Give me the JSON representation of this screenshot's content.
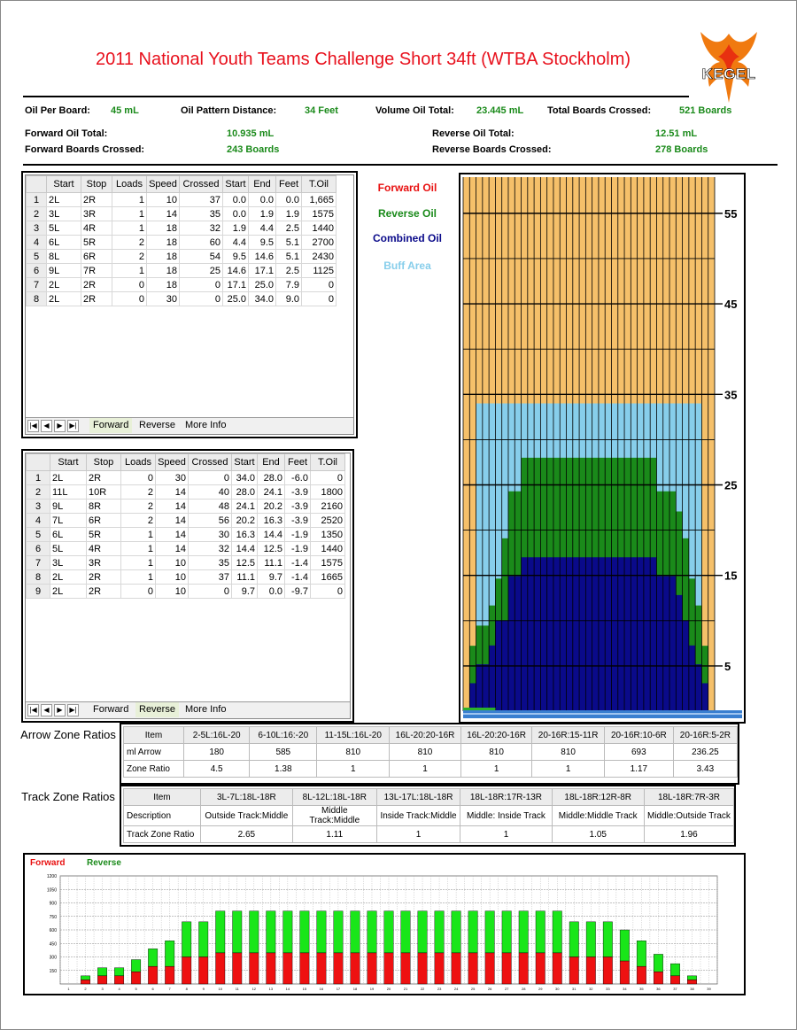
{
  "title": "2011 National Youth Teams Challenge Short 34ft (WTBA Stockholm)",
  "logo": "KEGEL",
  "summary": {
    "oil_per_board_label": "Oil Per Board:",
    "oil_per_board": "45 mL",
    "distance_label": "Oil Pattern Distance:",
    "distance": "34 Feet",
    "volume_label": "Volume Oil Total:",
    "volume": "23.445 mL",
    "boards_label": "Total Boards Crossed:",
    "boards": "521 Boards",
    "fwd_oil_label": "Forward Oil Total:",
    "fwd_oil": "10.935 mL",
    "fwd_boards_label": "Forward Boards Crossed:",
    "fwd_boards": "243 Boards",
    "rev_oil_label": "Reverse Oil Total:",
    "rev_oil": "12.51 mL",
    "rev_boards_label": "Reverse Boards Crossed:",
    "rev_boards": "278 Boards"
  },
  "grid_columns": [
    "",
    "Start",
    "Stop",
    "Loads",
    "Speed",
    "Crossed",
    "Start",
    "End",
    "Feet",
    "T.Oil"
  ],
  "forward_rows": [
    [
      "1",
      "2L",
      "2R",
      "1",
      "10",
      "37",
      "0.0",
      "0.0",
      "0.0",
      "1,665"
    ],
    [
      "2",
      "3L",
      "3R",
      "1",
      "14",
      "35",
      "0.0",
      "1.9",
      "1.9",
      "1575"
    ],
    [
      "3",
      "5L",
      "4R",
      "1",
      "18",
      "32",
      "1.9",
      "4.4",
      "2.5",
      "1440"
    ],
    [
      "4",
      "6L",
      "5R",
      "2",
      "18",
      "60",
      "4.4",
      "9.5",
      "5.1",
      "2700"
    ],
    [
      "5",
      "8L",
      "6R",
      "2",
      "18",
      "54",
      "9.5",
      "14.6",
      "5.1",
      "2430"
    ],
    [
      "6",
      "9L",
      "7R",
      "1",
      "18",
      "25",
      "14.6",
      "17.1",
      "2.5",
      "1125"
    ],
    [
      "7",
      "2L",
      "2R",
      "0",
      "18",
      "0",
      "17.1",
      "25.0",
      "7.9",
      "0"
    ],
    [
      "8",
      "2L",
      "2R",
      "0",
      "30",
      "0",
      "25.0",
      "34.0",
      "9.0",
      "0"
    ]
  ],
  "reverse_rows": [
    [
      "1",
      "2L",
      "2R",
      "0",
      "30",
      "0",
      "34.0",
      "28.0",
      "-6.0",
      "0"
    ],
    [
      "2",
      "11L",
      "10R",
      "2",
      "14",
      "40",
      "28.0",
      "24.1",
      "-3.9",
      "1800"
    ],
    [
      "3",
      "9L",
      "8R",
      "2",
      "14",
      "48",
      "24.1",
      "20.2",
      "-3.9",
      "2160"
    ],
    [
      "4",
      "7L",
      "6R",
      "2",
      "14",
      "56",
      "20.2",
      "16.3",
      "-3.9",
      "2520"
    ],
    [
      "5",
      "6L",
      "5R",
      "1",
      "14",
      "30",
      "16.3",
      "14.4",
      "-1.9",
      "1350"
    ],
    [
      "6",
      "5L",
      "4R",
      "1",
      "14",
      "32",
      "14.4",
      "12.5",
      "-1.9",
      "1440"
    ],
    [
      "7",
      "3L",
      "3R",
      "1",
      "10",
      "35",
      "12.5",
      "11.1",
      "-1.4",
      "1575"
    ],
    [
      "8",
      "2L",
      "2R",
      "1",
      "10",
      "37",
      "11.1",
      "9.7",
      "-1.4",
      "1665"
    ],
    [
      "9",
      "2L",
      "2R",
      "0",
      "10",
      "0",
      "9.7",
      "0.0",
      "-9.7",
      "0"
    ]
  ],
  "tabs": {
    "forward": "Forward",
    "reverse": "Reverse",
    "more": "More Info"
  },
  "nav": {
    "first": "|◀",
    "prev": "◀",
    "next": "▶",
    "last": "▶|"
  },
  "legend": {
    "forward": "Forward Oil",
    "reverse": "Reverse Oil",
    "combined": "Combined Oil",
    "buff": "Buff Area"
  },
  "colors": {
    "forward": "#e81010",
    "reverse": "#1a8a1a",
    "combined": "#0a0a8a",
    "buff": "#87ceeb",
    "lane": "#f5c06a",
    "bar_green": "#19e619",
    "bar_red": "#ee1111"
  },
  "arrow_zone": {
    "label": "Arrow Zone Ratios",
    "headers": [
      "Item",
      "2-5L:16L-20",
      "6-10L:16:-20",
      "11-15L:16L-20",
      "16L-20:20-16R",
      "16L-20:20-16R",
      "20-16R:15-11R",
      "20-16R:10-6R",
      "20-16R:5-2R"
    ],
    "row1": [
      "ml Arrow",
      "180",
      "585",
      "810",
      "810",
      "810",
      "810",
      "693",
      "236.25"
    ],
    "row2": [
      "Zone Ratio",
      "4.5",
      "1.38",
      "1",
      "1",
      "1",
      "1",
      "1.17",
      "3.43"
    ]
  },
  "track_zone": {
    "label": "Track Zone Ratios",
    "headers": [
      "Item",
      "3L-7L:18L-18R",
      "8L-12L:18L-18R",
      "13L-17L:18L-18R",
      "18L-18R:17R-13R",
      "18L-18R:12R-8R",
      "18L-18R:7R-3R"
    ],
    "row1": [
      "Description",
      "Outside Track:Middle",
      "Middle Track:Middle",
      "Inside Track:Middle",
      "Middle: Inside Track",
      "Middle:Middle Track",
      "Middle:Outside Track"
    ],
    "row2": [
      "Track Zone Ratio",
      "2.65",
      "1.11",
      "1",
      "1",
      "1.05",
      "1.96"
    ]
  },
  "lane_chart": {
    "ticks": [
      "55",
      "45",
      "35",
      "25",
      "15",
      "5"
    ]
  },
  "chart_data": {
    "type": "bar",
    "title": "",
    "legend": [
      "Forward",
      "Reverse"
    ],
    "ylim": [
      0,
      1200
    ],
    "yticks": [
      "1200",
      "1050",
      "900",
      "750",
      "600",
      "450",
      "300",
      "150"
    ],
    "categories": [
      "1",
      "2",
      "3",
      "4",
      "5",
      "6",
      "7",
      "8",
      "9",
      "10",
      "11",
      "12",
      "13",
      "14",
      "15",
      "16",
      "17",
      "18",
      "19",
      "20",
      "21",
      "22",
      "23",
      "24",
      "25",
      "26",
      "27",
      "28",
      "29",
      "30",
      "31",
      "32",
      "33",
      "34",
      "35",
      "36",
      "37",
      "38",
      "39"
    ],
    "series": [
      {
        "name": "Forward",
        "values": [
          0,
          45,
          90,
          90,
          135,
          195,
          195,
          300,
          300,
          345,
          345,
          345,
          345,
          345,
          345,
          345,
          345,
          345,
          345,
          345,
          345,
          345,
          345,
          345,
          345,
          345,
          345,
          345,
          345,
          345,
          300,
          300,
          300,
          255,
          195,
          135,
          90,
          45,
          0
        ]
      },
      {
        "name": "Reverse",
        "values": [
          0,
          45,
          90,
          90,
          135,
          195,
          285,
          390,
          390,
          465,
          465,
          465,
          465,
          465,
          465,
          465,
          465,
          465,
          465,
          465,
          465,
          465,
          465,
          465,
          465,
          465,
          465,
          465,
          465,
          465,
          390,
          390,
          390,
          345,
          285,
          195,
          135,
          45,
          0
        ]
      }
    ]
  }
}
